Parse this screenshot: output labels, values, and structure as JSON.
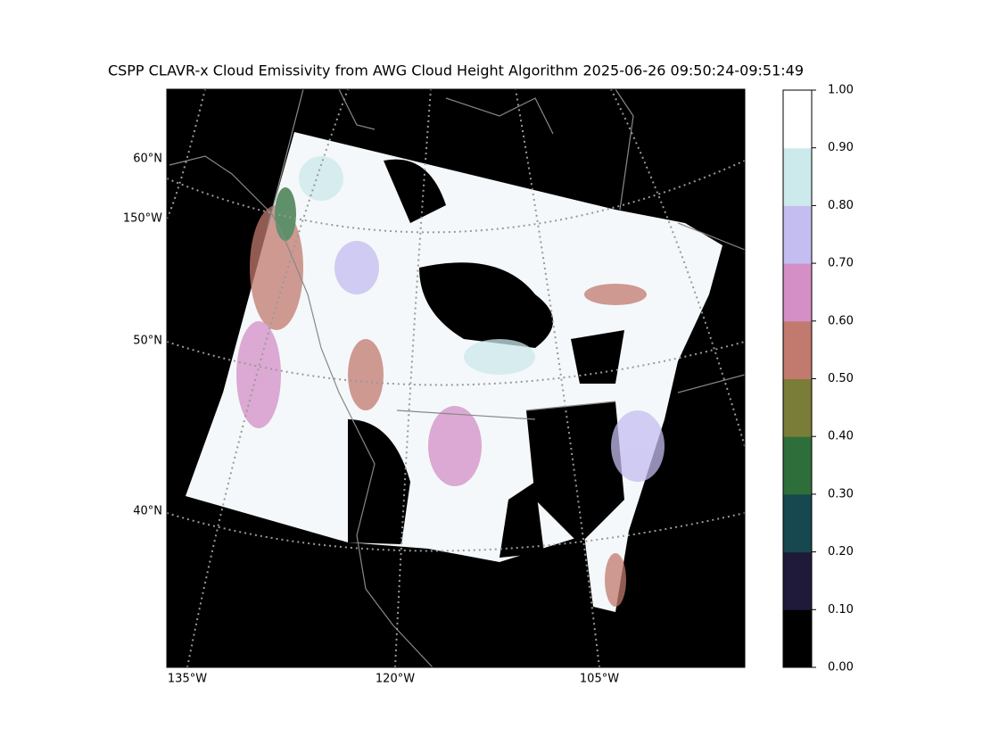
{
  "title": "CSPP CLAVR-x Cloud Emissivity from AWG Cloud Height Algorithm 2025-06-26 09:50:24-09:51:49",
  "lat_labels": [
    "60°N",
    "150°W",
    "50°N",
    "40°N"
  ],
  "lon_labels": [
    "135°W",
    "120°W",
    "105°W"
  ],
  "colorbar": {
    "ticks": [
      {
        "value": 0,
        "label": "0.00"
      },
      {
        "value": 0.1,
        "label": "0.10"
      },
      {
        "value": 0.2,
        "label": "0.20"
      },
      {
        "value": 0.3,
        "label": "0.30"
      },
      {
        "value": 0.4,
        "label": "0.40"
      },
      {
        "value": 0.5,
        "label": "0.50"
      },
      {
        "value": 0.6,
        "label": "0.60"
      },
      {
        "value": 0.7,
        "label": "0.70"
      },
      {
        "value": 0.8,
        "label": "0.80"
      },
      {
        "value": 0.9,
        "label": "0.90"
      },
      {
        "value": 1,
        "label": "1.00"
      }
    ],
    "lim": [
      0,
      1
    ],
    "colors": [
      "#000000",
      "#1f1a3a",
      "#17474f",
      "#2e6e3b",
      "#7a7d37",
      "#c27a6e",
      "#d38fc6",
      "#c4bdf0",
      "#cce9eb",
      "#ffffff"
    ]
  }
}
